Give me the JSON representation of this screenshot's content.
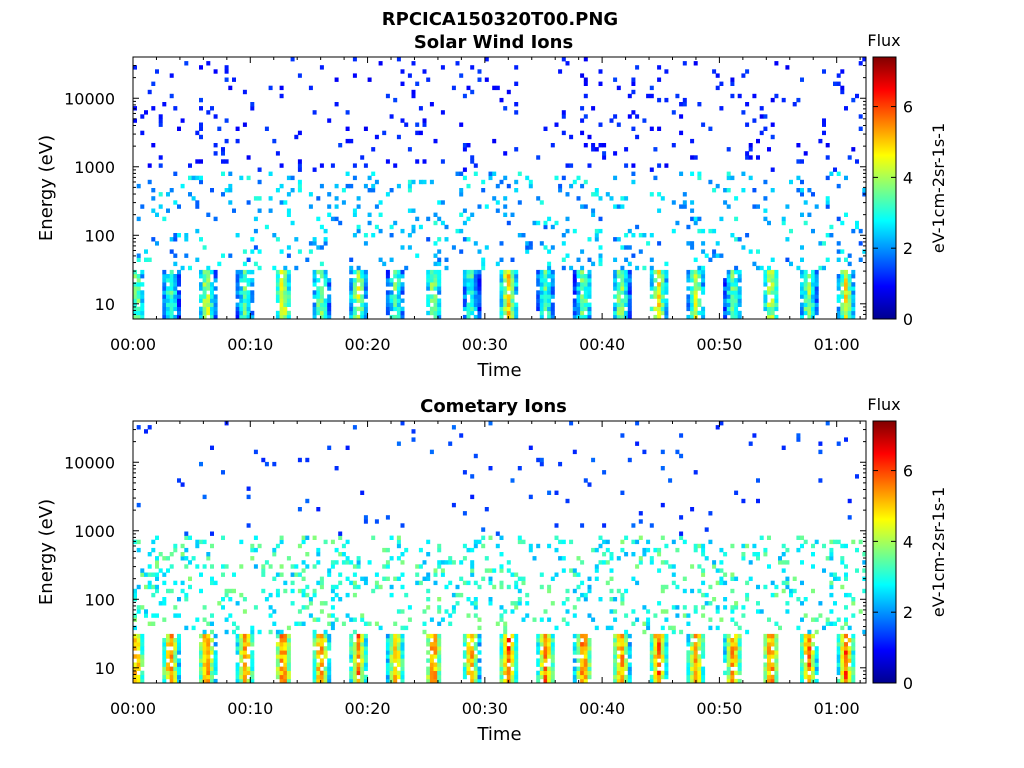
{
  "figure_title": "RPCICA150320T00.PNG",
  "colorbar": {
    "title": "Flux",
    "unit_label": "eV-1cm-2sr-1s-1",
    "tick_labels": [
      "0",
      "2",
      "4",
      "6"
    ],
    "range": [
      0,
      7.4
    ]
  },
  "chart_data": [
    {
      "type": "heatmap",
      "title": "Solar Wind Ions",
      "xlabel": "Time",
      "ylabel": "Energy (eV)",
      "xlim_min": [
        0,
        62.5
      ],
      "ylim": [
        6,
        40000
      ],
      "yscale": "log",
      "x_tick_labels": [
        "00:00",
        "00:10",
        "00:20",
        "00:30",
        "00:40",
        "00:50",
        "01:00"
      ],
      "x_tick_min": [
        0,
        10,
        20,
        30,
        40,
        50,
        60
      ],
      "y_tick_labels": [
        "10",
        "100",
        "1000",
        "10000"
      ],
      "y_tick_values": [
        10,
        100,
        1000,
        10000
      ],
      "low_energy_bursts": {
        "time_min": [
          0.3,
          3.2,
          6.3,
          9.6,
          12.8,
          16.0,
          19.2,
          22.4,
          25.6,
          28.8,
          32.0,
          35.2,
          38.4,
          41.6,
          44.8,
          48.0,
          51.2,
          54.4,
          57.6,
          60.8
        ],
        "peak_flux": [
          4.5,
          4.2,
          5.0,
          4.3,
          5.3,
          4.6,
          5.0,
          4.2,
          4.6,
          4.0,
          5.6,
          4.2,
          4.5,
          4.8,
          5.4,
          4.9,
          4.4,
          5.0,
          4.6,
          5.2
        ],
        "energy_range_eV": [
          6,
          30
        ]
      },
      "mid_energy_flux": 2.3,
      "high_energy_flux": 1.0
    },
    {
      "type": "heatmap",
      "title": "Cometary Ions",
      "xlabel": "Time",
      "ylabel": "Energy (eV)",
      "xlim_min": [
        0,
        62.5
      ],
      "ylim": [
        6,
        40000
      ],
      "yscale": "log",
      "x_tick_labels": [
        "00:00",
        "00:10",
        "00:20",
        "00:30",
        "00:40",
        "00:50",
        "01:00"
      ],
      "x_tick_min": [
        0,
        10,
        20,
        30,
        40,
        50,
        60
      ],
      "y_tick_labels": [
        "10",
        "100",
        "1000",
        "10000"
      ],
      "y_tick_values": [
        10,
        100,
        1000,
        10000
      ],
      "low_energy_bursts": {
        "time_min": [
          0.3,
          3.2,
          6.3,
          9.6,
          12.8,
          16.0,
          19.2,
          22.4,
          25.6,
          28.8,
          32.0,
          35.2,
          38.4,
          41.6,
          44.8,
          48.0,
          51.2,
          54.4,
          57.6,
          60.8
        ],
        "peak_flux": [
          6.0,
          6.3,
          6.4,
          6.3,
          6.6,
          6.4,
          6.3,
          6.0,
          6.5,
          6.2,
          6.7,
          6.4,
          6.5,
          6.4,
          6.6,
          6.3,
          6.4,
          6.5,
          6.4,
          6.5
        ],
        "energy_range_eV": [
          6,
          30
        ]
      },
      "mid_energy_flux": 3.0,
      "high_energy_flux": 1.3
    }
  ]
}
